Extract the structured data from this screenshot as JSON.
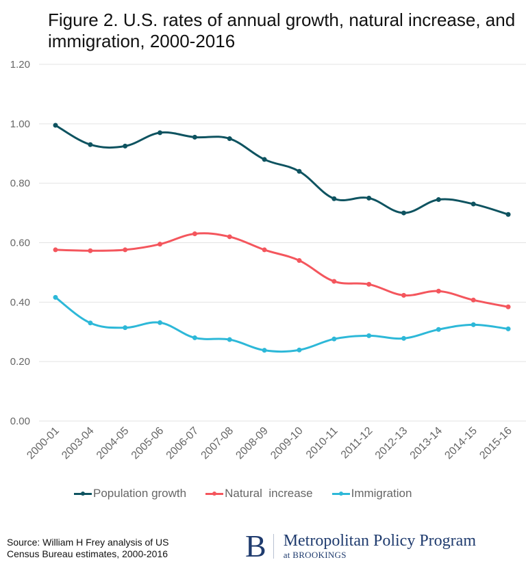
{
  "chart_data": {
    "type": "line",
    "title": "Figure 2. U.S. rates of annual growth, natural increase, and immigration, 2000-2016",
    "xlabel": "",
    "ylabel": "",
    "ylim": [
      0,
      1.2
    ],
    "yticks": [
      0.0,
      0.2,
      0.4,
      0.6,
      0.8,
      1.0,
      1.2
    ],
    "ytick_labels": [
      "0.00",
      "0.20",
      "0.40",
      "0.60",
      "0.80",
      "1.00",
      "1.20"
    ],
    "grid": true,
    "legend_position": "bottom",
    "categories": [
      "2000-01",
      "2003-04",
      "2004-05",
      "2005-06",
      "2006-07",
      "2007-08",
      "2008-09",
      "2009-10",
      "2010-11",
      "2011-12",
      "2012-13",
      "2013-14",
      "2014-15",
      "2015-16"
    ],
    "series": [
      {
        "name": "Population growth",
        "color": "#0e5360",
        "values": [
          0.995,
          0.93,
          0.925,
          0.97,
          0.955,
          0.95,
          0.88,
          0.84,
          0.748,
          0.75,
          0.7,
          0.745,
          0.73,
          0.695
        ]
      },
      {
        "name": "Natural  increase",
        "color": "#f4565d",
        "values": [
          0.576,
          0.573,
          0.576,
          0.595,
          0.63,
          0.62,
          0.576,
          0.54,
          0.47,
          0.46,
          0.423,
          0.437,
          0.407,
          0.384
        ]
      },
      {
        "name": "Immigration",
        "color": "#2db8d8",
        "values": [
          0.416,
          0.33,
          0.314,
          0.331,
          0.28,
          0.274,
          0.238,
          0.239,
          0.276,
          0.287,
          0.278,
          0.308,
          0.324,
          0.31
        ]
      }
    ]
  },
  "footer": {
    "source_line1": "Source: William H Frey analysis of US",
    "source_line2": "Census Bureau estimates, 2000-2016",
    "logo_letter": "B",
    "logo_main": "Metropolitan Policy Program",
    "logo_sub": "at BROOKINGS"
  }
}
